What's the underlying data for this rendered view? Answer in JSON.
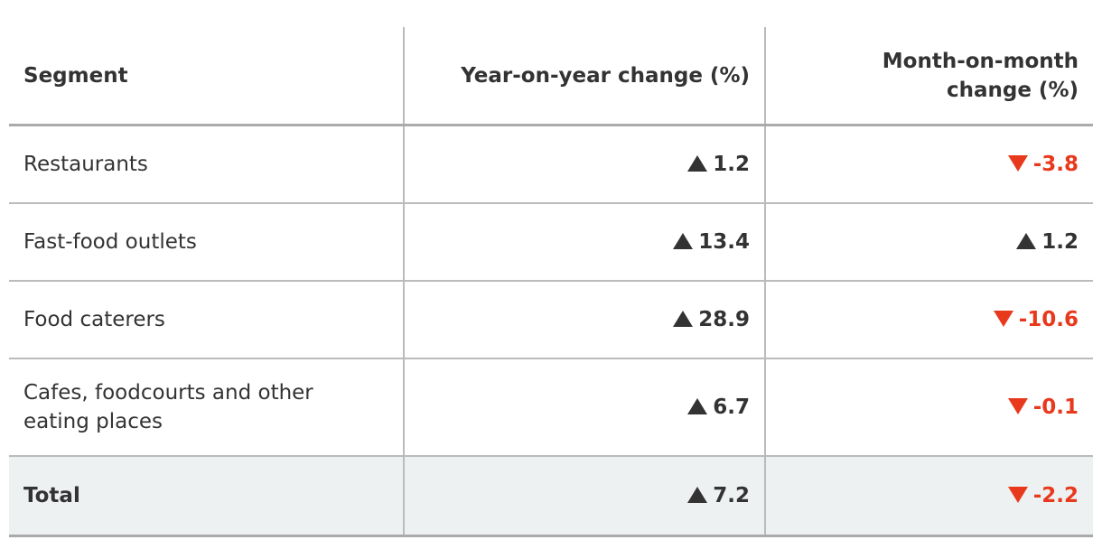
{
  "table": {
    "headers": [
      "Segment",
      "Year-on-year change (%)",
      "Month-on-month change (%)"
    ],
    "rows": [
      [
        "Restaurants",
        1.2,
        -3.8
      ],
      [
        "Fast-food outlets",
        13.4,
        1.2
      ],
      [
        "Food caterers",
        28.9,
        -10.6
      ],
      [
        "Cafes, foodcourts and other eating places",
        6.7,
        -0.1
      ]
    ],
    "total": [
      "Total",
      7.2,
      -2.2
    ]
  }
}
